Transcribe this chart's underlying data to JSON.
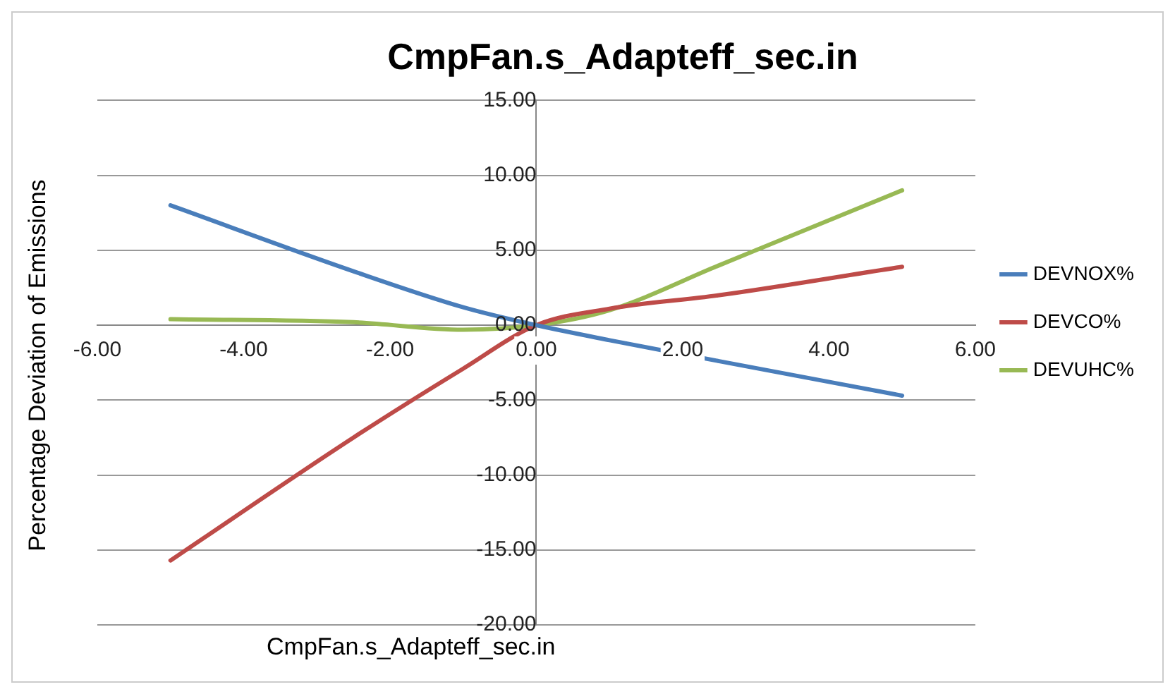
{
  "chart_data": {
    "type": "line",
    "title": "CmpFan.s_Adapteff_sec.in",
    "xlabel": "CmpFan.s_Adapteff_sec.in",
    "ylabel": "Percentage Deviation of Emissions",
    "x": [
      -5,
      -2.5,
      -1,
      0,
      1,
      2.5,
      5
    ],
    "series": [
      {
        "name": "DEVNOX%",
        "color": "#4a7ebb",
        "values": [
          8.0,
          3.6,
          1.2,
          0,
          -1.0,
          -2.4,
          -4.7
        ]
      },
      {
        "name": "DEVCO%",
        "color": "#be4b48",
        "values": [
          -15.7,
          -7.5,
          -2.9,
          0,
          1.1,
          2.0,
          3.9
        ]
      },
      {
        "name": "DEVUHC%",
        "color": "#98b954",
        "values": [
          0.4,
          0.2,
          -0.3,
          0,
          1.0,
          4.0,
          9.0
        ]
      }
    ],
    "xlim": [
      -6,
      6
    ],
    "xticks": [
      {
        "value": -6,
        "label": "-6.00"
      },
      {
        "value": -4,
        "label": "-4.00"
      },
      {
        "value": -2,
        "label": "-2.00"
      },
      {
        "value": 0,
        "label": "0.00"
      },
      {
        "value": 2,
        "label": "2.00"
      },
      {
        "value": 4,
        "label": "4.00"
      },
      {
        "value": 6,
        "label": "6.00"
      }
    ],
    "ylim": [
      -20,
      15
    ],
    "yticks": [
      {
        "value": -20,
        "label": "-20.00"
      },
      {
        "value": -15,
        "label": "-15.00"
      },
      {
        "value": -10,
        "label": "-10.00"
      },
      {
        "value": -5,
        "label": "-5.00"
      },
      {
        "value": 0,
        "label": "0.00"
      },
      {
        "value": 5,
        "label": "5.00"
      },
      {
        "value": 10,
        "label": "10.00"
      },
      {
        "value": 15,
        "label": "15.00"
      }
    ],
    "grid": "y",
    "legend": "right",
    "marker": "none",
    "line_style": "solid"
  }
}
